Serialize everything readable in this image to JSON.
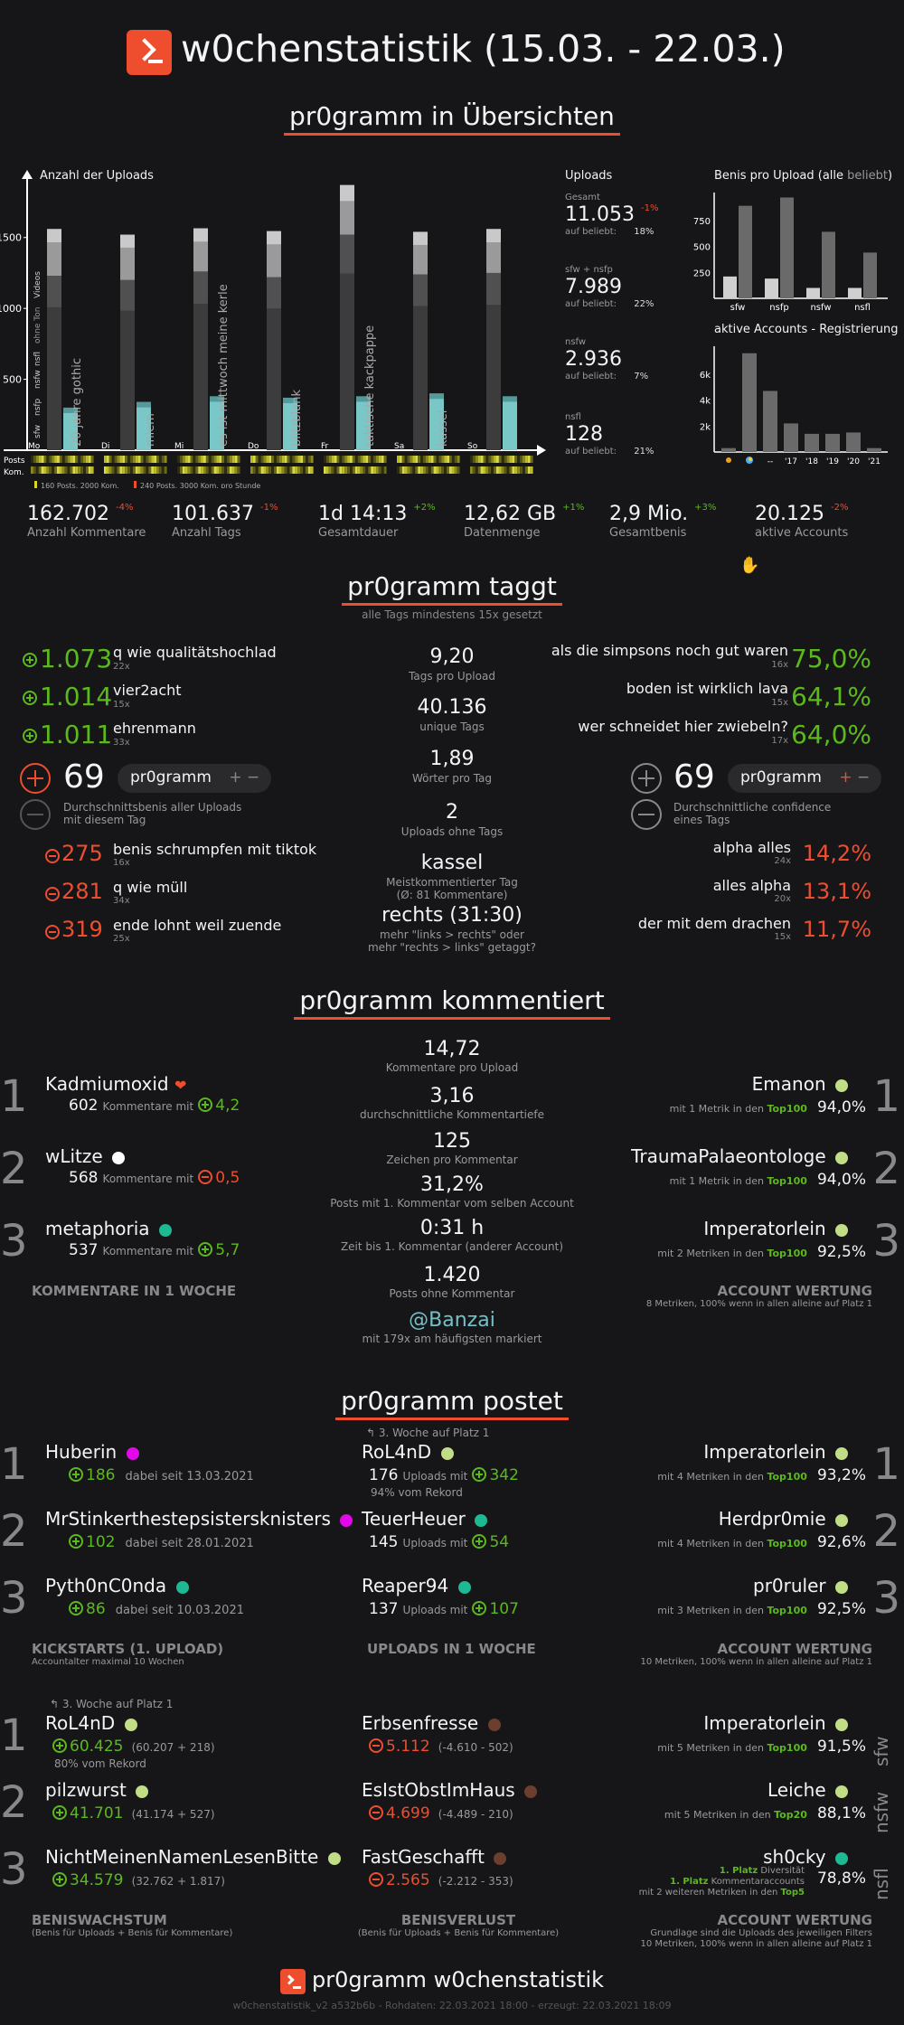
{
  "header": {
    "title": "w0chenstatistik (15.03. - 22.03.)"
  },
  "overview": {
    "section_title": "pr0gramm in Übersichten",
    "uploads_chart_title": "Anzahl der Uploads",
    "uploads_y_ticks": [
      "1500",
      "1000",
      "500"
    ],
    "day_labels": [
      "Mo",
      "Di",
      "Mi",
      "Do",
      "Fr",
      "Sa",
      "So"
    ],
    "day_tags": [
      "20 jahre gothic",
      "mlem",
      "es ist mittwoch meine kerle",
      "blitzblank",
      "taktische kackpappe",
      "kassel",
      ""
    ],
    "side_legend": [
      "Videos",
      "ohne Ton",
      "nsfl",
      "nsfw",
      "nsfp",
      "sfw"
    ],
    "row_labels": [
      "Posts",
      "Kom."
    ],
    "legend_yellow": "160 Posts, 2000 Kom.",
    "legend_red": "240 Posts, 3000 Kom. pro Stunde",
    "uploads_panel_title": "Uploads",
    "uploads": [
      {
        "label": "Gesamt",
        "value": "11.053",
        "delta": "-1%",
        "beliebt": "18%"
      },
      {
        "label": "sfw + nsfp",
        "value": "7.989",
        "delta": "",
        "beliebt": "22%"
      },
      {
        "label": "nsfw",
        "value": "2.936",
        "delta": "",
        "beliebt": "7%"
      },
      {
        "label": "nsfl",
        "value": "128",
        "delta": "",
        "beliebt": "21%"
      }
    ],
    "beliebt_label": "auf beliebt:",
    "benis_title_a": "Benis pro Upload (",
    "benis_title_b": "alle",
    "benis_title_c": "beliebt",
    "benis_title_d": ")",
    "benis_y_ticks": [
      "750",
      "500",
      "250"
    ],
    "benis_categories": [
      "sfw",
      "nsfp",
      "nsfw",
      "nsfl"
    ],
    "accounts_title": "aktive Accounts - Registrierung",
    "accounts_y_ticks": [
      "6k",
      "4k",
      "2k"
    ],
    "accounts_categories": [
      "",
      "",
      "--",
      "'17",
      "'18",
      "'19",
      "'20",
      "'21"
    ]
  },
  "summary_stats": [
    {
      "value": "162.702",
      "delta": "-4%",
      "delta_color": "#ee4d2e",
      "label": "Anzahl Kommentare"
    },
    {
      "value": "101.637",
      "delta": "-1%",
      "delta_color": "#ee4d2e",
      "label": "Anzahl Tags"
    },
    {
      "value": "1d 14:13",
      "delta": "+2%",
      "delta_color": "#5bb91c",
      "label": "Gesamtdauer"
    },
    {
      "value": "12,62 GB",
      "delta": "+1%",
      "delta_color": "#5bb91c",
      "label": "Datenmenge"
    },
    {
      "value": "2,9 Mio.",
      "delta": "+3%",
      "delta_color": "#5bb91c",
      "label": "Gesamtbenis"
    },
    {
      "value": "20.125",
      "delta": "-2%",
      "delta_color": "#ee4d2e",
      "label": "aktive Accounts"
    }
  ],
  "tags": {
    "section_title": "pr0gramm taggt",
    "subtitle": "alle Tags mindestens 15x gesetzt",
    "top_benis": [
      {
        "value": "1.073",
        "name": "q wie qualitätshochlad",
        "count": "22x"
      },
      {
        "value": "1.014",
        "name": "vier2acht",
        "count": "15x"
      },
      {
        "value": "1.011",
        "name": "ehrenmann",
        "count": "33x"
      }
    ],
    "bottom_benis": [
      {
        "value": "275",
        "name": "benis schrumpfen mit tiktok",
        "count": "16x"
      },
      {
        "value": "281",
        "name": "q wie müll",
        "count": "34x"
      },
      {
        "value": "319",
        "name": "ende lohnt weil zuende",
        "count": "25x"
      }
    ],
    "top_conf": [
      {
        "value": "75,0%",
        "name": "als die simpsons noch gut waren",
        "count": "16x"
      },
      {
        "value": "64,1%",
        "name": "boden ist wirklich lava",
        "count": "15x"
      },
      {
        "value": "64,0%",
        "name": "wer schneidet hier zwiebeln?",
        "count": "17x"
      }
    ],
    "bottom_conf": [
      {
        "value": "14,2%",
        "name": "alpha alles",
        "count": "24x"
      },
      {
        "value": "13,1%",
        "name": "alles alpha",
        "count": "20x"
      },
      {
        "value": "11,7%",
        "name": "der mit dem drachen",
        "count": "15x"
      }
    ],
    "benis_big": "69",
    "benis_pill": "pr0gramm",
    "benis_desc_1": "Durchschnittsbenis aller Uploads",
    "benis_desc_2": "mit diesem Tag",
    "conf_big": "69",
    "conf_pill": "pr0gramm",
    "conf_desc_1": "Durchschnittliche confidence",
    "conf_desc_2": "eines Tags",
    "center": [
      {
        "value": "9,20",
        "label": "Tags pro Upload"
      },
      {
        "value": "40.136",
        "label": "unique Tags"
      },
      {
        "value": "1,89",
        "label": "Wörter pro Tag"
      },
      {
        "value": "2",
        "label": "Uploads ohne Tags"
      },
      {
        "value": "kassel",
        "label": "Meistkommentierter Tag",
        "label2": "(Ø: 81 Kommentare)"
      },
      {
        "value": "rechts (31:30)",
        "label": "mehr \"links > rechts\" oder",
        "label2": "mehr \"rechts > links\" getaggt?"
      }
    ]
  },
  "comments": {
    "section_title": "pr0gramm kommentiert",
    "left": [
      {
        "rank": "1",
        "name": "Kadmiumoxid",
        "count": "602",
        "avg": "4,2",
        "neg": false
      },
      {
        "rank": "2",
        "name": "wLitze",
        "count": "568",
        "avg": "0,5",
        "neg": true
      },
      {
        "rank": "3",
        "name": "metaphoria",
        "count": "537",
        "avg": "5,7",
        "neg": false
      }
    ],
    "left_mid_label": "Kommentare mit",
    "left_caption": "KOMMENTARE IN 1 WOCHE",
    "center": [
      {
        "value": "14,72",
        "label": "Kommentare pro Upload"
      },
      {
        "value": "3,16",
        "label": "durchschnittliche Kommentartiefe"
      },
      {
        "value": "125",
        "label": "Zeichen pro Kommentar"
      },
      {
        "value": "31,2%",
        "label": "Posts mit 1. Kommentar vom selben Account"
      },
      {
        "value": "0:31 h",
        "label": "Zeit bis 1. Kommentar (anderer Account)"
      },
      {
        "value": "1.420",
        "label": "Posts ohne Kommentar"
      },
      {
        "value": "@Banzai",
        "label": "mit 179x am häufigsten markiert"
      }
    ],
    "right": [
      {
        "rank": "1",
        "name": "Emanon",
        "detail_a": "mit 1 Metrik in den ",
        "detail_b": "Top100",
        "pct": "94,0%"
      },
      {
        "rank": "2",
        "name": "TraumaPalaeontologe",
        "detail_a": "mit 1 Metrik in den ",
        "detail_b": "Top100",
        "pct": "94,0%"
      },
      {
        "rank": "3",
        "name": "Imperatorlein",
        "detail_a": "mit 2 Metriken in den ",
        "detail_b": "Top100",
        "pct": "92,5%"
      }
    ],
    "right_caption": "ACCOUNT WERTUNG",
    "right_caption_sub": "8 Metriken, 100% wenn in allen alleine auf Platz 1"
  },
  "posts": {
    "section_title": "pr0gramm postet",
    "kickstarts": [
      {
        "rank": "1",
        "name": "Huberin",
        "benis": "186",
        "since": "dabei seit 13.03.2021"
      },
      {
        "rank": "2",
        "name": "MrStinkerthestepsistersknisters",
        "benis": "102",
        "since": "dabei seit 28.01.2021"
      },
      {
        "rank": "3",
        "name": "Pyth0nC0nda",
        "benis": "86",
        "since": "dabei seit 10.03.2021"
      }
    ],
    "kick_caption": "KICKSTARTS (1. UPLOAD)",
    "kick_caption_sub": "Accountalter maximal 10 Wochen",
    "uploaders_note": "3. Woche auf Platz 1",
    "uploaders": [
      {
        "name": "RoL4nD",
        "count": "176",
        "benis": "342",
        "extra": "94% vom Rekord"
      },
      {
        "name": "TeuerHeuer",
        "count": "145",
        "benis": "54",
        "extra": ""
      },
      {
        "name": "Reaper94",
        "count": "137",
        "benis": "107",
        "extra": ""
      }
    ],
    "uploads_mid_label": "Uploads mit",
    "uploaders_caption": "UPLOADS IN 1 WOCHE",
    "acc_right": [
      {
        "rank": "1",
        "name": "Imperatorlein",
        "detail_a": "mit 4 Metriken in den ",
        "detail_b": "Top100",
        "pct": "93,2%"
      },
      {
        "rank": "2",
        "name": "Herdpr0mie",
        "detail_a": "mit 4 Metriken in den ",
        "detail_b": "Top100",
        "pct": "92,6%"
      },
      {
        "rank": "3",
        "name": "pr0ruler",
        "detail_a": "mit 3 Metriken in den ",
        "detail_b": "Top100",
        "pct": "92,5%"
      }
    ],
    "acc_caption": "ACCOUNT WERTUNG",
    "acc_caption_sub": "10 Metriken, 100% wenn in allen alleine auf Platz 1",
    "growth_note": "3. Woche auf Platz 1",
    "growth": [
      {
        "rank": "1",
        "name": "RoL4nD",
        "benis": "60.425",
        "detail": "(60.207 + 218)",
        "extra": "80% vom Rekord"
      },
      {
        "rank": "2",
        "name": "pilzwurst",
        "benis": "41.701",
        "detail": "(41.174 + 527)",
        "extra": ""
      },
      {
        "rank": "3",
        "name": "NichtMeinenNamenLesenBitte",
        "benis": "34.579",
        "detail": "(32.762 + 1.817)",
        "extra": ""
      }
    ],
    "growth_caption": "BENISWACHSTUM",
    "growth_caption_sub": "(Benis für Uploads + Benis für Kommentare)",
    "loss": [
      {
        "name": "Erbsenfresse",
        "benis": "5.112",
        "detail": "(-4.610 - 502)"
      },
      {
        "name": "EsIstObstImHaus",
        "benis": "4.699",
        "detail": "(-4.489 - 210)"
      },
      {
        "name": "FastGeschafft",
        "benis": "2.565",
        "detail": "(-2.212 - 353)"
      }
    ],
    "loss_caption": "BENISVERLUST",
    "loss_caption_sub": "(Benis für Uploads + Benis für Kommentare)",
    "filter_acc": [
      {
        "rank": "sfw",
        "name": "Imperatorlein",
        "pct": "91,5%",
        "detail_a": "mit 5 Metriken in den ",
        "detail_b": "Top100"
      },
      {
        "rank": "nsfw",
        "name": "Leiche",
        "pct": "88,1%",
        "detail_a": "mit 5 Metriken in den ",
        "detail_b": "Top20"
      },
      {
        "rank": "nsfl",
        "name": "sh0cky",
        "pct": "78,8%",
        "detail_a": "",
        "detail_b": ""
      }
    ],
    "shocky_l1a": "1. Platz",
    "shocky_l1b": " Diversität",
    "shocky_l2a": "1. Platz",
    "shocky_l2b": " Kommentaraccounts",
    "shocky_l3a": "mit 2 weiteren Metriken in den ",
    "shocky_l3b": "Top5",
    "filter_caption": "ACCOUNT WERTUNG",
    "filter_caption_sub1": "Grundlage sind die Uploads des jeweiligen Filters",
    "filter_caption_sub2": "10 Metriken, 100% wenn in allen alleine auf Platz 1"
  },
  "footer": {
    "title": "pr0gramm w0chenstatistik",
    "meta": "w0chenstatistik_v2 a532b6b - Rohdaten: 22.03.2021 18:00 - erzeugt: 22.03.2021 18:09"
  },
  "colors": {
    "accent": "#ee4d2e",
    "positive": "#5bb91c",
    "negative": "#ee4d2e",
    "cyan": "#75c0c7",
    "rank_neuschwuchtel": "#e108e9",
    "rank_fliesentisch": "#1cb992",
    "rank_edler_spender": "#c1de86",
    "rank_altschwuchtel": "#5bb91c",
    "rank_gebannt": "#6b3e2e",
    "rank_admin_white": "#ffffff"
  },
  "chart_data": [
    {
      "type": "bar",
      "title": "Anzahl der Uploads",
      "categories": [
        "Mo",
        "Di",
        "Mi",
        "Do",
        "Fr",
        "Sa",
        "So"
      ],
      "series": [
        {
          "name": "gesamt",
          "values": [
            1560,
            1520,
            1565,
            1545,
            1870,
            1540,
            1560
          ]
        },
        {
          "name": "nsfw",
          "values": [
            1230,
            1200,
            1260,
            1220,
            1520,
            1240,
            1250
          ]
        },
        {
          "name": "beliebt",
          "values": [
            300,
            340,
            380,
            370,
            380,
            400,
            380
          ]
        }
      ],
      "ylim": [
        0,
        1900
      ]
    },
    {
      "type": "bar",
      "title": "Benis pro Upload (alle beliebt)",
      "categories": [
        "sfw",
        "nsfp",
        "nsfw",
        "nsfl"
      ],
      "series": [
        {
          "name": "alle",
          "values": [
            210,
            190,
            100,
            100
          ]
        },
        {
          "name": "beliebt",
          "values": [
            890,
            970,
            640,
            440
          ]
        }
      ],
      "ylim": [
        0,
        1000
      ]
    },
    {
      "type": "bar",
      "title": "aktive Accounts - Registrierung",
      "categories": [
        "",
        "",
        "--",
        "'17",
        "'18",
        "'19",
        "'20",
        "'21"
      ],
      "values": [
        300,
        7600,
        4700,
        2200,
        1400,
        1400,
        1500,
        300
      ],
      "ylim": [
        0,
        8000
      ]
    }
  ]
}
